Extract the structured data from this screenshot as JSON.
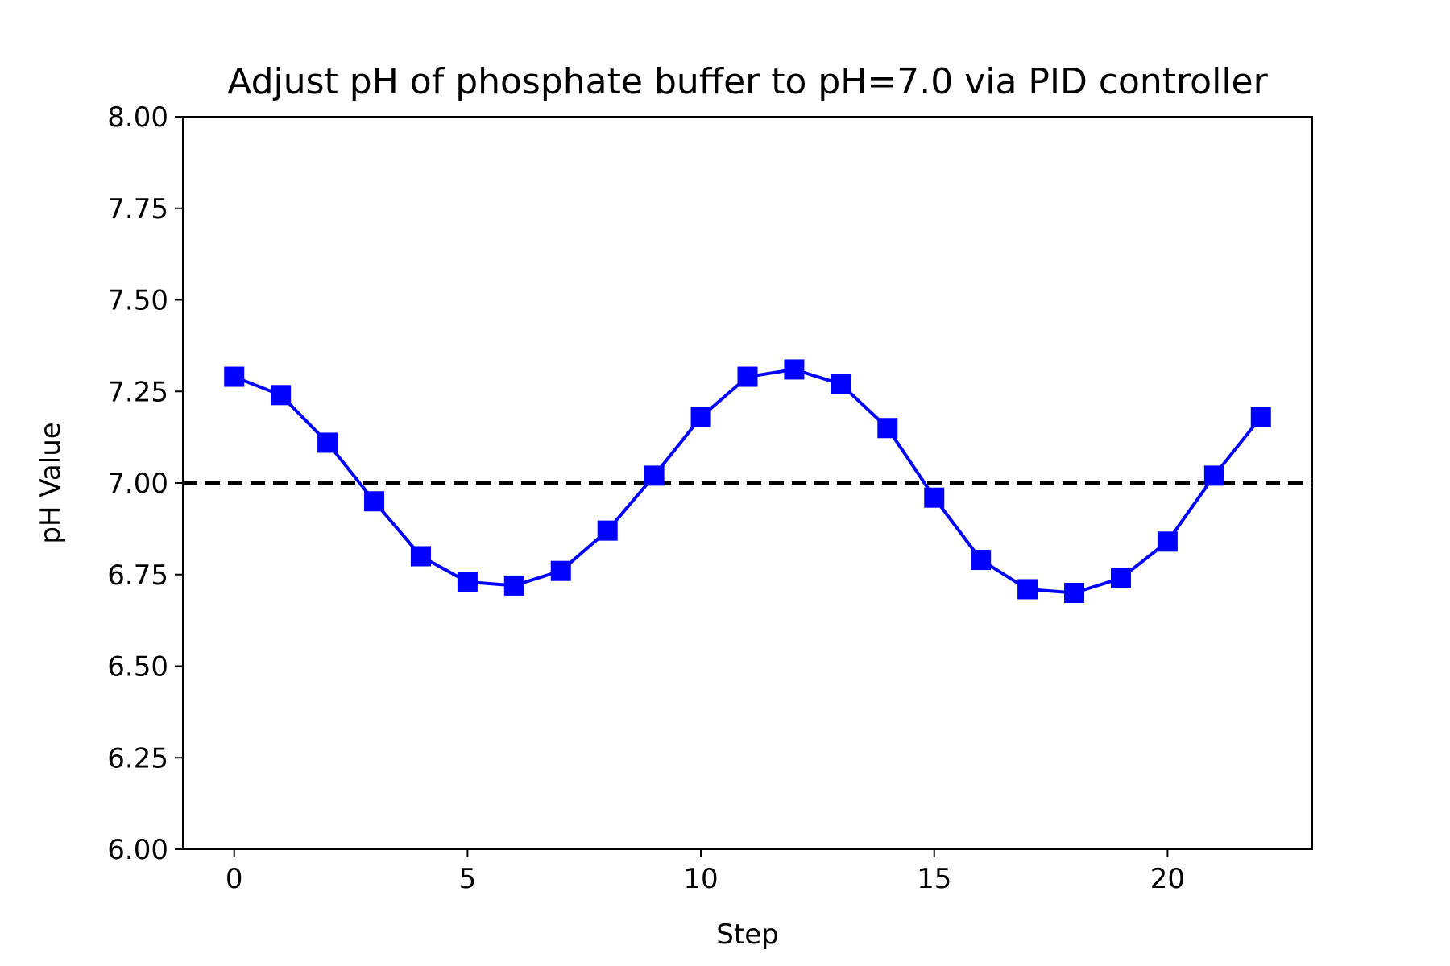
{
  "chart_data": {
    "type": "line",
    "title": "Adjust pH of phosphate buffer to pH=7.0 via PID controller",
    "xlabel": "Step",
    "ylabel": "pH Value",
    "xlim": [
      -1.1,
      23.1
    ],
    "ylim": [
      6.0,
      8.0
    ],
    "xticks": [
      0,
      5,
      10,
      15,
      20
    ],
    "xtick_labels": [
      "0",
      "5",
      "10",
      "15",
      "20"
    ],
    "yticks": [
      6.0,
      6.25,
      6.5,
      6.75,
      7.0,
      7.25,
      7.5,
      7.75,
      8.0
    ],
    "ytick_labels": [
      "6.00",
      "6.25",
      "6.50",
      "6.75",
      "7.00",
      "7.25",
      "7.50",
      "7.75",
      "8.00"
    ],
    "grid": false,
    "series": [
      {
        "x": [
          0,
          1,
          2,
          3,
          4,
          5,
          6,
          7,
          8,
          9,
          10,
          11,
          12,
          13,
          14,
          15,
          16,
          17,
          18,
          19,
          20,
          21,
          22
        ],
        "values": [
          7.29,
          7.24,
          7.11,
          6.95,
          6.8,
          6.73,
          6.72,
          6.76,
          6.87,
          7.02,
          7.18,
          7.29,
          7.31,
          7.27,
          7.15,
          6.96,
          6.79,
          6.71,
          6.7,
          6.74,
          6.84,
          7.02,
          7.18
        ],
        "color": "#0000ff",
        "marker": "square",
        "line_style": "solid"
      }
    ],
    "reference_lines": [
      {
        "y": 7.0,
        "color": "#000000",
        "line_style": "dashed"
      }
    ]
  }
}
